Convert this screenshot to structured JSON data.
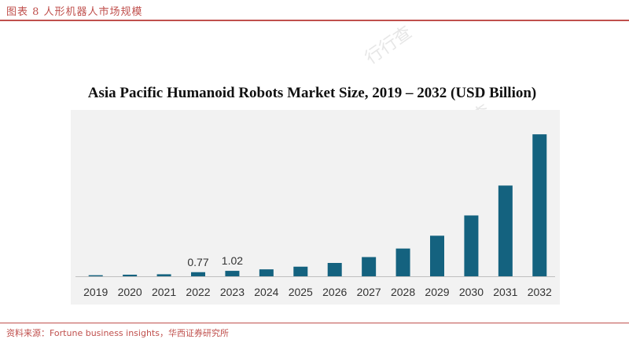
{
  "header": {
    "title": "图表 8 人形机器人市场规模"
  },
  "footer": {
    "source": "资料来源：Fortune business insights，华西证券研究所"
  },
  "watermark": {
    "text": "行行查"
  },
  "colors": {
    "accent": "#c0504d",
    "bar": "#14627f",
    "panel": "#f2f2f2"
  },
  "chart_data": {
    "type": "bar",
    "title": "Asia Pacific Humanoid Robots Market Size, 2019 – 2032 (USD Billion)",
    "xlabel": "",
    "ylabel": "",
    "categories": [
      "2019",
      "2020",
      "2021",
      "2022",
      "2023",
      "2024",
      "2025",
      "2026",
      "2027",
      "2028",
      "2029",
      "2030",
      "2031",
      "2032"
    ],
    "values": [
      0.2,
      0.3,
      0.38,
      0.77,
      1.02,
      1.3,
      1.8,
      2.5,
      3.6,
      5.2,
      7.6,
      11.4,
      17.0,
      26.6
    ],
    "data_labels": {
      "3": "0.77",
      "4": "1.02"
    },
    "ylim": [
      0,
      30
    ],
    "grid": false,
    "legend": "none"
  }
}
